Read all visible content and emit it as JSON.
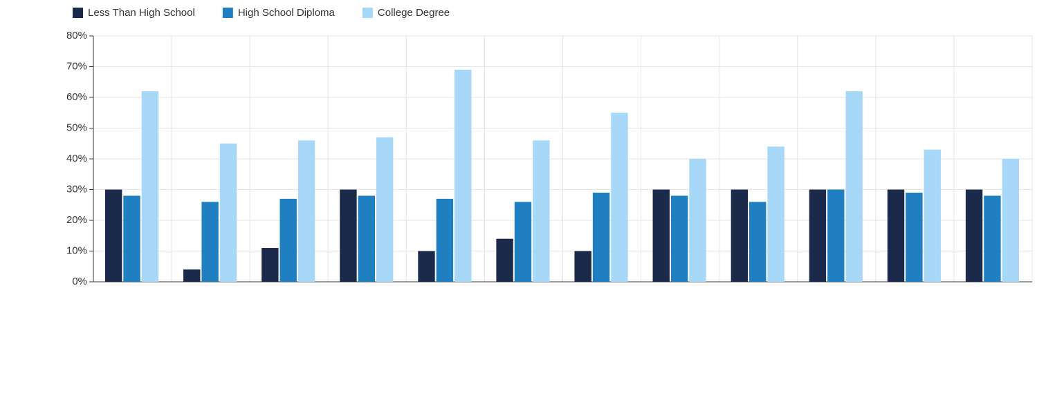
{
  "chart_data": {
    "type": "bar",
    "categories": [
      null,
      null,
      null,
      null,
      null,
      null,
      null,
      null,
      null,
      null,
      null,
      null
    ],
    "series": [
      {
        "name": "Less Than High School",
        "color": "#1b2a4a",
        "values": [
          30,
          4,
          11,
          30,
          10,
          14,
          10,
          30,
          30,
          30,
          30,
          30
        ]
      },
      {
        "name": "High School Diploma",
        "color": "#1f7fc0",
        "values": [
          28,
          26,
          27,
          28,
          27,
          26,
          29,
          28,
          26,
          30,
          29,
          28
        ]
      },
      {
        "name": "College Degree",
        "color": "#a8d8f8",
        "values": [
          62,
          45,
          46,
          47,
          69,
          46,
          55,
          40,
          44,
          62,
          43,
          40
        ]
      }
    ],
    "ylim": [
      0,
      80
    ],
    "yticks": [
      {
        "value": 0,
        "label": "0%"
      },
      {
        "value": 10,
        "label": "10%"
      },
      {
        "value": 20,
        "label": "20%"
      },
      {
        "value": 30,
        "label": "30%"
      },
      {
        "value": 40,
        "label": "40%"
      },
      {
        "value": 50,
        "label": "50%"
      },
      {
        "value": 60,
        "label": "60%"
      },
      {
        "value": 70,
        "label": "70%"
      },
      {
        "value": 80,
        "label": "80%"
      }
    ],
    "grid": true,
    "legend": "top"
  }
}
